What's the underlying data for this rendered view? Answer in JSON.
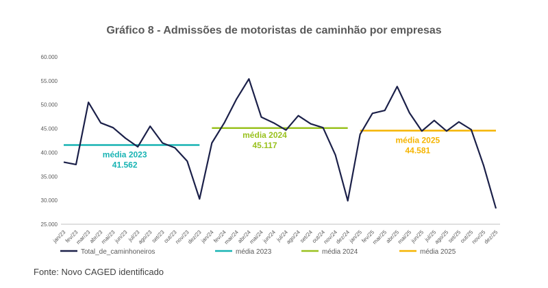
{
  "title": "Gráfico 8 - Admissões de motoristas de caminhão por empresas",
  "source": "Fonte: Novo CAGED identificado",
  "colors": {
    "series": "#1b2049",
    "media2023": "#17b3b3",
    "media2024": "#99c11e",
    "media2025": "#f5b400",
    "axis": "#bfbfbf",
    "text": "#595959"
  },
  "chart_data": {
    "type": "line",
    "title": "Gráfico 8 - Admissões de motoristas de caminhão por empresas",
    "xlabel": "",
    "ylabel": "",
    "ylim": [
      25000,
      60000
    ],
    "yticks": [
      "60.000",
      "55.000",
      "50.000",
      "45.000",
      "40.000",
      "35.000",
      "30.000",
      "25.000"
    ],
    "grid": false,
    "legend_position": "bottom",
    "categories": [
      "jan/23",
      "fev/23",
      "mar/23",
      "abr/23",
      "mai/23",
      "jun/23",
      "jul/23",
      "ago/23",
      "set/23",
      "out/23",
      "nov/23",
      "dez/23",
      "jan/24",
      "fev/24",
      "mar/24",
      "abr/24",
      "mai/24",
      "jun/24",
      "jul/24",
      "ago/24",
      "set/24",
      "out/24",
      "nov/24",
      "dez/24",
      "jan/25",
      "fev/25",
      "mar/25",
      "abr/25",
      "mai/25",
      "jun/25",
      "jul/25",
      "ago/25",
      "set/25",
      "out/25",
      "nov/25",
      "dez/25"
    ],
    "series": [
      {
        "name": "Total_de_caminhoneiros",
        "values": [
          38000,
          37500,
          50500,
          46200,
          45200,
          43000,
          41200,
          45500,
          42000,
          41000,
          38200,
          30300,
          42000,
          46200,
          51200,
          55400,
          47400,
          46200,
          44700,
          47700,
          46000,
          45200,
          39500,
          29900,
          43800,
          48200,
          48800,
          53800,
          48300,
          44500,
          46700,
          44500,
          46400,
          44800,
          37300,
          28300
        ]
      },
      {
        "name": "média 2023",
        "value": 41562,
        "label_year": "média 2023",
        "label_value": "41.562",
        "start": 0,
        "end": 11
      },
      {
        "name": "média 2024",
        "value": 45117,
        "label_year": "média 2024",
        "label_value": "45.117",
        "start": 12,
        "end": 23
      },
      {
        "name": "média 2025",
        "value": 44581,
        "label_year": "média 2025",
        "label_value": "44.581",
        "start": 24,
        "end": 35
      }
    ]
  }
}
